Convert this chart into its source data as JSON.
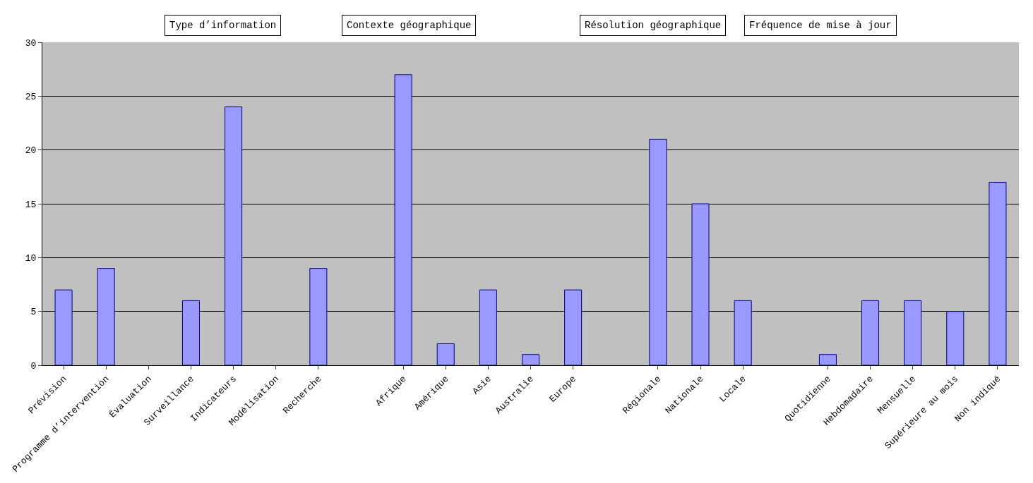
{
  "chart_data": {
    "type": "bar",
    "categories": [
      "Prévision",
      "Programme d’intervention",
      "Évaluation",
      "Surveillance",
      "Indicateurs",
      "Modélisation",
      "Recherche",
      null,
      "Afrique",
      "Amérique",
      "Asie",
      "Australie",
      "Europe",
      null,
      "Régionale",
      "Nationale",
      "Locale",
      null,
      "Quotidienne",
      "Hebdomadaire",
      "Mensuelle",
      "Supérieure au mois",
      "Non indiqué"
    ],
    "values": [
      7,
      9,
      null,
      6,
      24,
      null,
      9,
      null,
      27,
      2,
      7,
      1,
      7,
      null,
      21,
      15,
      6,
      null,
      1,
      6,
      6,
      5,
      17
    ],
    "color": "#9999ff",
    "ylim": [
      0,
      30
    ],
    "yticks": [
      0,
      5,
      10,
      15,
      20,
      25,
      30
    ],
    "grid": "y",
    "legend": false,
    "annotations": [
      "Type d’information",
      "Contexte géographique",
      "Résolution géographique",
      "Fréquence de mise à jour"
    ]
  }
}
